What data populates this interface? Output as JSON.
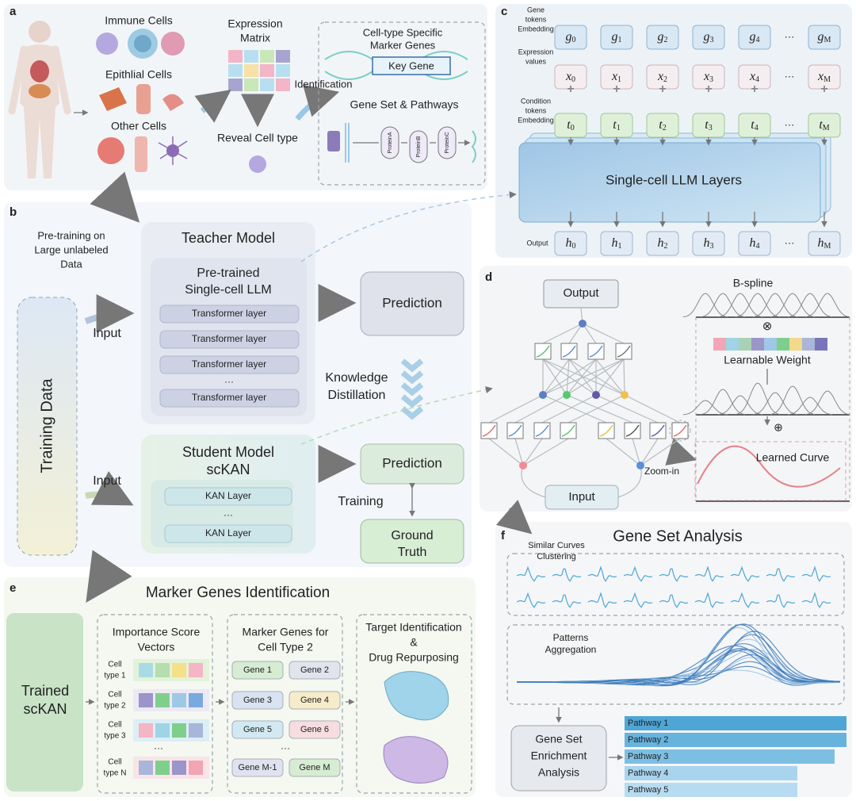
{
  "panel_a": {
    "label": "a",
    "cell_groups": [
      "Immune Cells",
      "Epithlial Cells",
      "Other Cells"
    ],
    "expression_matrix": [
      "Expression",
      "Matrix"
    ],
    "reveal": "Reveal Cell type",
    "identification": "Identification",
    "marker_title": [
      "Cell-type Specific",
      "Marker Genes"
    ],
    "key_gene": "Key Gene",
    "pathways_title": "Gene Set & Pathways",
    "proteins": [
      "ProteinA",
      "ProteinB",
      "ProteinC"
    ]
  },
  "panel_b": {
    "label": "b",
    "pretraining": [
      "Pre-training on",
      "Large unlabeled",
      "Data"
    ],
    "teacher_title": "Teacher Model",
    "teacher_inner": [
      "Pre-trained",
      "Single-cell LLM"
    ],
    "teacher_layers": [
      "Transformer layer",
      "Transformer layer",
      "Transformer layer",
      "···",
      "Transformer layer"
    ],
    "prediction_teacher": "Prediction",
    "distillation": [
      "Knowledge",
      "Distillation"
    ],
    "training_data": "Training Data",
    "input_teacher": "Input",
    "input_student": "Input",
    "student_title": [
      "Student Model",
      "scKAN"
    ],
    "student_layers": [
      "KAN Layer",
      "···",
      "KAN Layer"
    ],
    "prediction_student": "Prediction",
    "training": "Training",
    "ground_truth": [
      "Ground",
      "Truth"
    ]
  },
  "panel_c": {
    "label": "c",
    "row_labels": {
      "gene": [
        "Gene",
        "tokens",
        "Embedding"
      ],
      "expression": [
        "Expression",
        "values"
      ],
      "condition": [
        "Condition",
        "tokens",
        "Embedding"
      ],
      "output": "Output"
    },
    "symbols": [
      "g",
      "x",
      "t",
      "h"
    ],
    "indices": [
      "0",
      "1",
      "2",
      "3",
      "4",
      "M"
    ],
    "ellipsis": "···",
    "plus": "+",
    "llm": "Single-cell LLM Layers"
  },
  "panel_d": {
    "label": "d",
    "output": "Output",
    "bspline": "B-spline",
    "otimes": "⊗",
    "weight": "Learnable Weight",
    "oplus": "⊕",
    "curve": "Learned Curve",
    "zoom": "Zoom-in",
    "input": "Input"
  },
  "panel_e": {
    "label": "e",
    "title": "Marker Genes Identification",
    "trained": [
      "Trained",
      "scKAN"
    ],
    "importance_title": [
      "Importance Score",
      "Vectors"
    ],
    "cell_types": [
      [
        "Cell",
        "type 1"
      ],
      [
        "Cell",
        "type 2"
      ],
      [
        "Cell",
        "type 3"
      ],
      [
        "Cell",
        "type N"
      ]
    ],
    "importance_ellipsis": "···",
    "marker_title": [
      "Marker Genes for",
      "Cell Type 2"
    ],
    "genes": [
      "Gene 1",
      "Gene 2",
      "Gene 3",
      "Gene 4",
      "Gene 5",
      "Gene 6",
      "Gene M-1",
      "Gene M"
    ],
    "genes_ellipsis": "···",
    "target_title": [
      "Target Identification",
      "&",
      "Drug Repurposing"
    ]
  },
  "panel_f": {
    "label": "f",
    "title": "Gene Set Analysis",
    "clustering": [
      "Similar Curves",
      "Clustering"
    ],
    "aggregation": [
      "Patterns",
      "Aggregation"
    ],
    "enrichment": [
      "Gene Set",
      "Enrichment",
      "Analysis"
    ],
    "pathways": [
      "Pathway 1",
      "Pathway 2",
      "Pathway 3",
      "Pathway 4",
      "Pathway 5"
    ]
  }
}
